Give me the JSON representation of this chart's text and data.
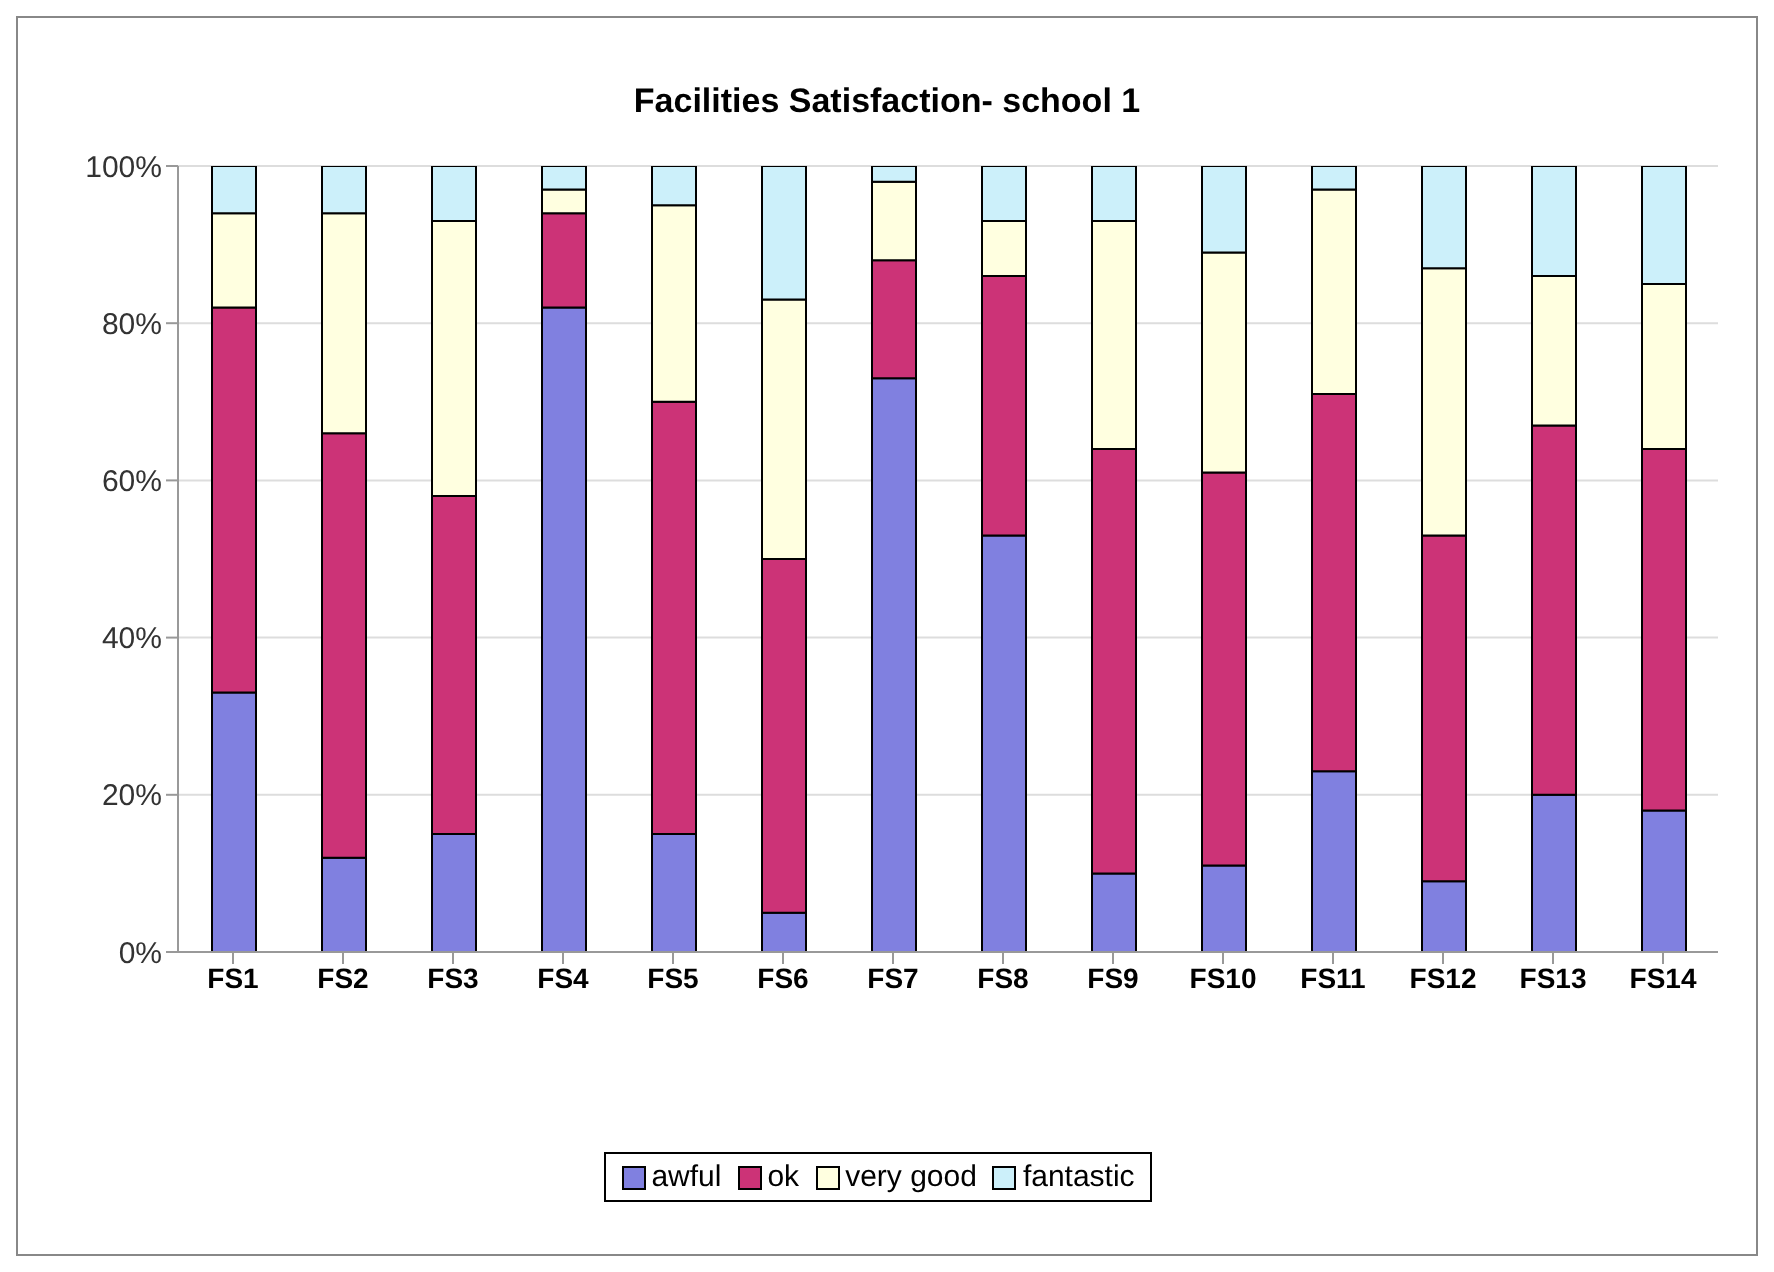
{
  "chart_data": {
    "type": "bar",
    "title": "Facilities Satisfaction- school 1",
    "stacked": true,
    "categories": [
      "FS1",
      "FS2",
      "FS3",
      "FS4",
      "FS5",
      "FS6",
      "FS7",
      "FS8",
      "FS9",
      "FS10",
      "FS11",
      "FS12",
      "FS13",
      "FS14"
    ],
    "series": [
      {
        "name": "awful",
        "color": "#8080e0",
        "values": [
          33,
          12,
          15,
          82,
          15,
          5,
          73,
          53,
          10,
          11,
          23,
          9,
          20,
          18
        ]
      },
      {
        "name": "ok",
        "color": "#cc3377",
        "values": [
          49,
          54,
          43,
          12,
          55,
          45,
          15,
          33,
          54,
          50,
          48,
          44,
          47,
          46
        ]
      },
      {
        "name": "very good",
        "color": "#ffffe0",
        "values": [
          12,
          28,
          35,
          3,
          25,
          33,
          10,
          7,
          29,
          28,
          26,
          34,
          19,
          21
        ]
      },
      {
        "name": "fantastic",
        "color": "#ccf0fa",
        "values": [
          6,
          6,
          7,
          3,
          5,
          17,
          2,
          7,
          7,
          11,
          3,
          13,
          14,
          15
        ]
      }
    ],
    "ylim": [
      0,
      100
    ],
    "yticks": [
      {
        "value": 0,
        "label": "0%"
      },
      {
        "value": 20,
        "label": "20%"
      },
      {
        "value": 40,
        "label": "40%"
      },
      {
        "value": 60,
        "label": "60%"
      },
      {
        "value": 80,
        "label": "80%"
      },
      {
        "value": 100,
        "label": "100%"
      }
    ],
    "grid": "y",
    "legend": "bottom"
  }
}
